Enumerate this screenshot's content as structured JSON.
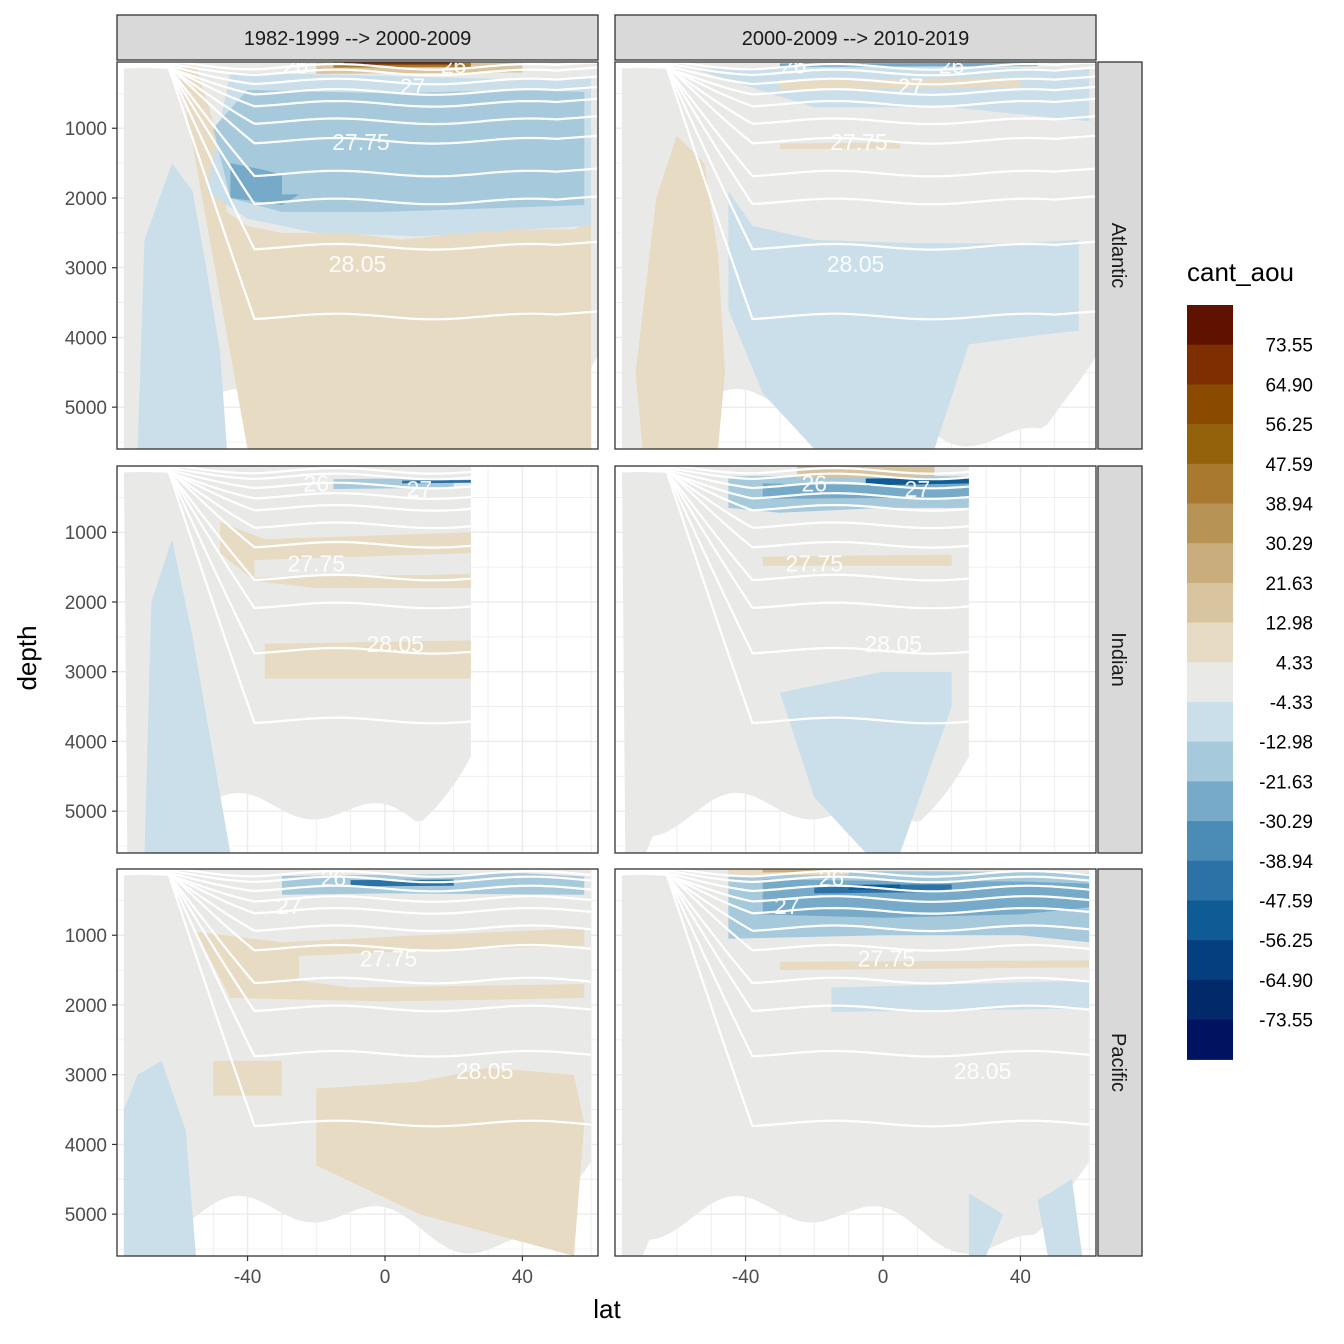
{
  "chart_data": {
    "type": "heatmap",
    "title": "",
    "xlabel": "lat",
    "ylabel": "depth",
    "xlim": [
      -78,
      62
    ],
    "ylim": [
      5600,
      50
    ],
    "x_ticks": [
      -40,
      0,
      40
    ],
    "y_ticks": [
      1000,
      2000,
      3000,
      4000,
      5000
    ],
    "x_tick_labels": [
      "-40",
      "0",
      "40"
    ],
    "y_tick_labels": [
      "1000",
      "2000",
      "3000",
      "4000",
      "5000"
    ],
    "facet_columns": [
      "1982-1999 --> 2000-2009",
      "2000-2009 --> 2010-2019"
    ],
    "facet_rows": [
      "Atlantic",
      "Indian",
      "Pacific"
    ],
    "legend": {
      "title": "cant_aou",
      "position": "right",
      "breaks": [
        "73.55",
        "64.90",
        "56.25",
        "47.59",
        "38.94",
        "30.29",
        "21.63",
        "12.98",
        "4.33",
        "-4.33",
        "-12.98",
        "-21.63",
        "-30.29",
        "-38.94",
        "-47.59",
        "-56.25",
        "-64.90",
        "-73.55"
      ],
      "colors": [
        "#601200",
        "#7e2e00",
        "#8a4a00",
        "#94620a",
        "#a8792e",
        "#b79356",
        "#c9ad7d",
        "#d8c59f",
        "#e8dbc3",
        "#e9eae8",
        "#cadfea",
        "#a6c9dc",
        "#76aac8",
        "#4a8cb6",
        "#2c72a7",
        "#0e5b95",
        "#063f80",
        "#02296a",
        "#001260"
      ]
    },
    "contour_labels": [
      "26",
      "27",
      "27.75",
      "28.05"
    ],
    "grid": true
  }
}
